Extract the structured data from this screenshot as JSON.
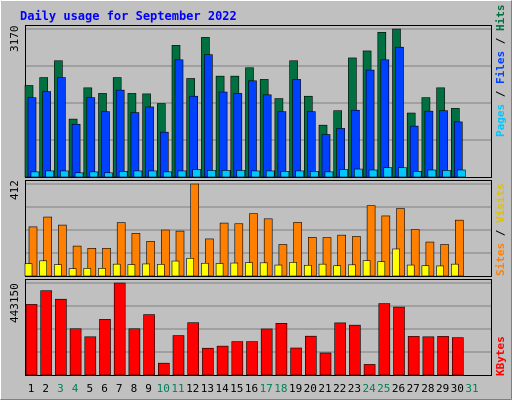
{
  "chart_data": [
    {
      "type": "bar",
      "title": "Daily usage for September 2022",
      "y_label": "3170",
      "ylim": [
        0,
        3170
      ],
      "grid": true,
      "legend": [
        "Pages",
        "Files",
        "Hits"
      ],
      "categories": [
        "1",
        "2",
        "3",
        "4",
        "5",
        "6",
        "7",
        "8",
        "9",
        "10",
        "11",
        "12",
        "13",
        "14",
        "15",
        "16",
        "17",
        "18",
        "19",
        "20",
        "21",
        "22",
        "23",
        "24",
        "25",
        "26",
        "27",
        "28",
        "29",
        "30",
        "31"
      ],
      "series": [
        {
          "name": "Hits",
          "color": "#007040",
          "values": [
            1960,
            2130,
            2490,
            1240,
            1910,
            1790,
            2130,
            1790,
            1780,
            1570,
            2820,
            2110,
            2990,
            2160,
            2160,
            2340,
            2090,
            1680,
            2490,
            1730,
            1110,
            1420,
            2550,
            2700,
            3100,
            3170,
            1370,
            1700,
            1910,
            1470,
            0
          ]
        },
        {
          "name": "Files",
          "color": "#0040ff",
          "values": [
            1700,
            1830,
            2130,
            1130,
            1700,
            1400,
            1860,
            1380,
            1500,
            960,
            2510,
            1730,
            2620,
            1820,
            1790,
            2060,
            1760,
            1400,
            2090,
            1400,
            910,
            1040,
            1430,
            2290,
            2510,
            2780,
            1090,
            1410,
            1420,
            1180,
            0
          ]
        },
        {
          "name": "Pages",
          "color": "#00c8ff",
          "values": [
            110,
            130,
            130,
            90,
            110,
            90,
            120,
            130,
            130,
            110,
            130,
            160,
            140,
            140,
            140,
            130,
            130,
            120,
            130,
            120,
            110,
            160,
            170,
            150,
            200,
            200,
            120,
            150,
            140,
            150,
            0
          ]
        }
      ]
    },
    {
      "type": "bar",
      "y_label": "412",
      "ylim": [
        0,
        412
      ],
      "grid": true,
      "legend": [
        "Sites",
        "Visits"
      ],
      "categories": [
        "1",
        "2",
        "3",
        "4",
        "5",
        "6",
        "7",
        "8",
        "9",
        "10",
        "11",
        "12",
        "13",
        "14",
        "15",
        "16",
        "17",
        "18",
        "19",
        "20",
        "21",
        "22",
        "23",
        "24",
        "25",
        "26",
        "27",
        "28",
        "29",
        "30",
        "31"
      ],
      "series": [
        {
          "name": "Visits",
          "color": "#ff8000",
          "values": [
            220,
            264,
            228,
            134,
            124,
            124,
            239,
            191,
            155,
            206,
            201,
            412,
            166,
            237,
            234,
            279,
            256,
            141,
            240,
            173,
            172,
            183,
            177,
            315,
            269,
            302,
            208,
            152,
            141,
            250,
            0
          ]
        },
        {
          "name": "Sites",
          "color": "#ffff00",
          "values": [
            55,
            68,
            51,
            33,
            34,
            34,
            53,
            51,
            54,
            52,
            67,
            79,
            57,
            56,
            58,
            60,
            59,
            49,
            61,
            48,
            53,
            46,
            50,
            69,
            64,
            121,
            49,
            46,
            45,
            53,
            0
          ]
        }
      ]
    },
    {
      "type": "bar",
      "y_label": "443150",
      "ylim": [
        0,
        443150
      ],
      "grid": true,
      "legend": [
        "KBytes"
      ],
      "categories": [
        "1",
        "2",
        "3",
        "4",
        "5",
        "6",
        "7",
        "8",
        "9",
        "10",
        "11",
        "12",
        "13",
        "14",
        "15",
        "16",
        "17",
        "18",
        "19",
        "20",
        "21",
        "22",
        "23",
        "24",
        "25",
        "26",
        "27",
        "28",
        "29",
        "30",
        "31"
      ],
      "series": [
        {
          "name": "KBytes",
          "color": "#ff0000",
          "values": [
            340000,
            406000,
            365000,
            223000,
            184000,
            268000,
            443150,
            223000,
            291000,
            57000,
            190000,
            252000,
            129000,
            139000,
            161000,
            161000,
            222000,
            249000,
            130000,
            187000,
            106000,
            251000,
            240000,
            51000,
            344000,
            327000,
            186000,
            184000,
            186000,
            180000,
            0
          ]
        }
      ]
    }
  ],
  "weekend_days": [
    "3",
    "4",
    "10",
    "11",
    "17",
    "18",
    "24",
    "25",
    "31"
  ],
  "colors": {
    "background": "#c0c0c0",
    "title": "#0000ff",
    "axis_text": "#000000",
    "weekend_text": "#00805a",
    "hits": "#007040",
    "files": "#0040ff",
    "pages": "#00c8ff",
    "visits": "#ff8000",
    "sites": "#ffff00",
    "kbytes": "#ff0000"
  }
}
